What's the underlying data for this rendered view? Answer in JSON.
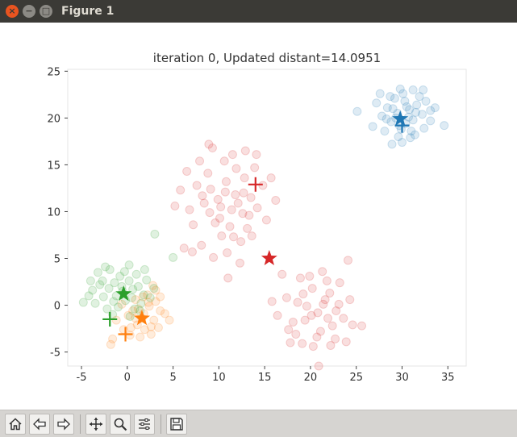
{
  "window": {
    "title": "Figure 1",
    "close_glyph": "×",
    "minimize_glyph": "−",
    "maximize_glyph": "□"
  },
  "toolbar": {
    "icons": [
      "home-icon",
      "back-icon",
      "forward-icon",
      "pan-icon",
      "zoom-icon",
      "subplots-icon",
      "save-icon"
    ]
  },
  "chart_data": {
    "type": "scatter",
    "title": "iteration 0, Updated distant=14.0951",
    "xlabel": "",
    "ylabel": "",
    "xlim": [
      -6.5,
      37
    ],
    "ylim": [
      -6.5,
      25.2
    ],
    "xticks": [
      -5,
      0,
      5,
      10,
      15,
      20,
      25,
      30,
      35
    ],
    "yticks": [
      -5,
      0,
      5,
      10,
      15,
      20,
      25
    ],
    "tick_labels_x": [
      "-5",
      "0",
      "5",
      "10",
      "15",
      "20",
      "25",
      "30",
      "35"
    ],
    "tick_labels_y": [
      "-5",
      "0",
      "5",
      "10",
      "15",
      "20",
      "25"
    ],
    "grid": false,
    "point_opacity": 0.15,
    "colors": {
      "blue": "#1f77b4",
      "orange": "#ff7f0e",
      "green": "#2ca02c",
      "red": "#d62728"
    },
    "series": [
      {
        "color": "#1f77b4",
        "points": [
          [
            29.5,
            20.5
          ],
          [
            30.5,
            21.2
          ],
          [
            28.8,
            19.6
          ],
          [
            31.2,
            19.8
          ],
          [
            29.9,
            18.8
          ],
          [
            30.8,
            20.9
          ],
          [
            28.4,
            21.1
          ],
          [
            31.6,
            21.4
          ],
          [
            29.2,
            22.1
          ],
          [
            30.1,
            22.6
          ],
          [
            32.2,
            20.4
          ],
          [
            27.8,
            20.2
          ],
          [
            31.0,
            18.6
          ],
          [
            29.6,
            18.0
          ],
          [
            32.6,
            21.8
          ],
          [
            28.1,
            18.6
          ],
          [
            30.4,
            19.4
          ],
          [
            31.9,
            22.3
          ],
          [
            27.2,
            21.6
          ],
          [
            33.1,
            19.7
          ],
          [
            29.3,
            20.0
          ],
          [
            30.7,
            20.1
          ],
          [
            28.7,
            22.3
          ],
          [
            31.4,
            18.2
          ],
          [
            30.0,
            17.4
          ],
          [
            32.4,
            18.9
          ],
          [
            26.8,
            19.1
          ],
          [
            33.6,
            21.1
          ],
          [
            29.8,
            23.1
          ],
          [
            25.1,
            20.7
          ],
          [
            34.6,
            19.2
          ],
          [
            31.2,
            23.0
          ],
          [
            28.9,
            17.2
          ],
          [
            32.3,
            23.0
          ],
          [
            27.6,
            22.6
          ],
          [
            30.3,
            21.8
          ],
          [
            29.0,
            21.0
          ],
          [
            31.5,
            20.6
          ],
          [
            30.9,
            17.9
          ],
          [
            28.3,
            19.9
          ],
          [
            33.1,
            20.8
          ],
          [
            29.7,
            19.2
          ]
        ]
      },
      {
        "color": "#ff7f0e",
        "points": [
          [
            1.6,
            -1.4
          ],
          [
            0.6,
            -0.6
          ],
          [
            2.4,
            -0.1
          ],
          [
            1.1,
            -2.1
          ],
          [
            2.9,
            -1.6
          ],
          [
            0.1,
            -1.1
          ],
          [
            1.9,
            -2.6
          ],
          [
            3.1,
            0.4
          ],
          [
            2.2,
            1.1
          ],
          [
            0.9,
            0.6
          ],
          [
            3.6,
            -0.6
          ],
          [
            -0.4,
            -2.6
          ],
          [
            2.6,
            -3.1
          ],
          [
            1.4,
            -3.4
          ],
          [
            -1.6,
            -3.6
          ],
          [
            3.1,
            1.6
          ],
          [
            4.1,
            -0.9
          ],
          [
            -0.6,
            0.1
          ],
          [
            2.3,
            0.3
          ],
          [
            1.2,
            -0.4
          ],
          [
            0.3,
            -3.2
          ],
          [
            3.4,
            -2.4
          ],
          [
            -1.2,
            -1.6
          ],
          [
            2.8,
            2.1
          ],
          [
            1.7,
            0.9
          ],
          [
            -1.8,
            -4.2
          ],
          [
            4.6,
            -1.6
          ],
          [
            0.4,
            -2.4
          ],
          [
            2.6,
            -2.3
          ],
          [
            1.8,
            -0.9
          ],
          [
            0.9,
            -1.4
          ],
          [
            3.6,
            0.9
          ]
        ]
      },
      {
        "color": "#2ca02c",
        "points": [
          [
            -0.5,
            1.5
          ],
          [
            0.5,
            0.8
          ],
          [
            -1.5,
            0.4
          ],
          [
            1.2,
            2.0
          ],
          [
            -2.0,
            1.8
          ],
          [
            0.2,
            2.6
          ],
          [
            -1.0,
            -0.2
          ],
          [
            1.8,
            1.1
          ],
          [
            -2.6,
            0.9
          ],
          [
            -0.8,
            3.1
          ],
          [
            1.0,
            3.3
          ],
          [
            -3.0,
            2.2
          ],
          [
            -3.5,
            0.2
          ],
          [
            -4.2,
            1.0
          ],
          [
            2.1,
            2.7
          ],
          [
            -1.4,
            2.4
          ],
          [
            0.8,
            -0.4
          ],
          [
            -2.2,
            -0.4
          ],
          [
            -0.2,
            0.5
          ],
          [
            1.5,
            0.2
          ],
          [
            -3.2,
            3.5
          ],
          [
            0.2,
            4.3
          ],
          [
            -1.9,
            3.8
          ],
          [
            -4.8,
            0.3
          ],
          [
            2.5,
            0.8
          ],
          [
            -2.7,
            2.6
          ],
          [
            -1.2,
            1.0
          ],
          [
            0.6,
            1.7
          ],
          [
            -0.3,
            3.6
          ],
          [
            -3.8,
            1.6
          ],
          [
            1.9,
            3.8
          ],
          [
            -2.4,
            4.1
          ],
          [
            2.9,
            1.8
          ],
          [
            -1.6,
            -1.0
          ],
          [
            0.3,
            -1.2
          ],
          [
            -4.0,
            2.6
          ],
          [
            5.0,
            5.1
          ],
          [
            3.0,
            7.6
          ],
          [
            -0.6,
            2.0
          ],
          [
            1.4,
            -0.6
          ]
        ]
      },
      {
        "color": "#d62728",
        "points": [
          [
            10.2,
            10.5
          ],
          [
            11.8,
            11.8
          ],
          [
            9.1,
            12.4
          ],
          [
            12.6,
            9.8
          ],
          [
            8.4,
            10.9
          ],
          [
            10.8,
            13.2
          ],
          [
            13.5,
            11.5
          ],
          [
            9.6,
            8.8
          ],
          [
            11.2,
            8.4
          ],
          [
            7.6,
            12.8
          ],
          [
            12.8,
            13.6
          ],
          [
            14.2,
            10.4
          ],
          [
            8.8,
            14.1
          ],
          [
            10.6,
            15.4
          ],
          [
            6.8,
            10.2
          ],
          [
            13.1,
            8.2
          ],
          [
            11.9,
            14.6
          ],
          [
            9.9,
            11.3
          ],
          [
            12.1,
            10.9
          ],
          [
            7.2,
            8.6
          ],
          [
            10.3,
            7.4
          ],
          [
            14.8,
            12.8
          ],
          [
            8.1,
            6.4
          ],
          [
            12.4,
            6.8
          ],
          [
            5.8,
            12.3
          ],
          [
            11.5,
            16.1
          ],
          [
            9.3,
            16.8
          ],
          [
            15.2,
            9.1
          ],
          [
            6.2,
            6.1
          ],
          [
            13.9,
            14.7
          ],
          [
            10.9,
            5.6
          ],
          [
            7.9,
            15.4
          ],
          [
            12.9,
            16.5
          ],
          [
            8.9,
            17.2
          ],
          [
            14.1,
            16.1
          ],
          [
            5.2,
            10.6
          ],
          [
            11.0,
            2.9
          ],
          [
            15.7,
            13.6
          ],
          [
            16.2,
            11.2
          ],
          [
            9.4,
            5.1
          ],
          [
            12.3,
            4.5
          ],
          [
            7.1,
            5.7
          ],
          [
            13.6,
            7.4
          ],
          [
            6.5,
            14.3
          ],
          [
            10.1,
            9.3
          ],
          [
            11.4,
            10.2
          ],
          [
            9.0,
            9.9
          ],
          [
            12.7,
            12.0
          ],
          [
            8.2,
            11.7
          ],
          [
            10.7,
            12.1
          ],
          [
            11.6,
            7.3
          ],
          [
            13.3,
            9.6
          ],
          [
            20.8,
            -0.8
          ],
          [
            21.6,
            0.6
          ],
          [
            19.4,
            -1.6
          ],
          [
            22.4,
            -2.2
          ],
          [
            20.2,
            1.8
          ],
          [
            18.6,
            0.3
          ],
          [
            21.1,
            -2.8
          ],
          [
            23.1,
            0.1
          ],
          [
            19.6,
            -0.1
          ],
          [
            22.1,
            1.3
          ],
          [
            18.1,
            -1.8
          ],
          [
            20.7,
            -3.4
          ],
          [
            23.6,
            -1.4
          ],
          [
            21.8,
            2.6
          ],
          [
            17.4,
            0.8
          ],
          [
            19.9,
            3.1
          ],
          [
            24.3,
            0.6
          ],
          [
            17.6,
            -2.6
          ],
          [
            22.7,
            -3.6
          ],
          [
            20.3,
            -4.4
          ],
          [
            16.4,
            -1.1
          ],
          [
            24.6,
            -2.1
          ],
          [
            18.9,
            2.9
          ],
          [
            21.3,
            3.6
          ],
          [
            15.8,
            0.4
          ],
          [
            23.2,
            2.4
          ],
          [
            25.6,
            -2.2
          ],
          [
            19.1,
            -4.1
          ],
          [
            22.2,
            -4.3
          ],
          [
            16.9,
            3.3
          ],
          [
            24.1,
            4.8
          ],
          [
            20.9,
            -6.5
          ],
          [
            17.8,
            -4.0
          ],
          [
            21.4,
            0.1
          ],
          [
            20.1,
            -1.1
          ],
          [
            22.8,
            -0.6
          ],
          [
            19.2,
            1.2
          ],
          [
            18.4,
            -3.1
          ],
          [
            23.9,
            -3.9
          ],
          [
            21.9,
            -1.4
          ]
        ]
      }
    ],
    "centroids_star": [
      {
        "color": "#1f77b4",
        "x": 29.8,
        "y": 19.9
      },
      {
        "color": "#ff7f0e",
        "x": 1.6,
        "y": -1.4
      },
      {
        "color": "#2ca02c",
        "x": -0.4,
        "y": 1.2
      },
      {
        "color": "#d62728",
        "x": 15.5,
        "y": 5.0
      }
    ],
    "centroids_plus": [
      {
        "color": "#1f77b4",
        "x": 30.0,
        "y": 19.2
      },
      {
        "color": "#ff7f0e",
        "x": -0.2,
        "y": -3.1
      },
      {
        "color": "#2ca02c",
        "x": -1.9,
        "y": -1.5
      },
      {
        "color": "#d62728",
        "x": 14.0,
        "y": 12.9
      }
    ]
  }
}
